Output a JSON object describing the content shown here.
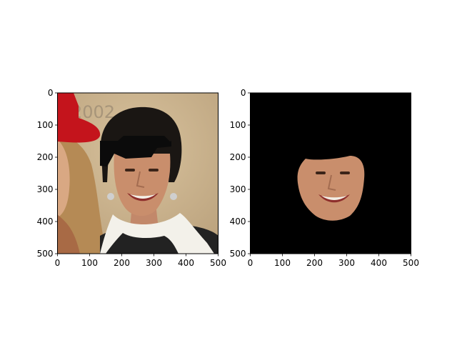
{
  "chart_data": [
    {
      "type": "image",
      "content": "cropped photo of a smiling woman with black hair and a white scarf; a black patch is pasted over her hair near the fringe",
      "xlim": [
        0,
        500
      ],
      "ylim": [
        500,
        0
      ],
      "xticks": [
        "0",
        "100",
        "200",
        "300",
        "400",
        "500"
      ],
      "yticks": [
        "0",
        "100",
        "200",
        "300",
        "400",
        "500"
      ],
      "visible_text_in_photo": "2002",
      "title": "",
      "xlabel": "",
      "ylabel": ""
    },
    {
      "type": "image",
      "content": "segmentation output: only the face region of the same woman shown on a black background",
      "xlim": [
        0,
        500
      ],
      "ylim": [
        500,
        0
      ],
      "xticks": [
        "0",
        "100",
        "200",
        "300",
        "400",
        "500"
      ],
      "yticks": [
        "0",
        "100",
        "200",
        "300",
        "400",
        "500"
      ],
      "title": "",
      "xlabel": "",
      "ylabel": ""
    }
  ],
  "colors": {
    "axes_edge": "#000000",
    "background": "#ffffff",
    "mask_background": "#000000",
    "photo_backdrop": "#c7ad87",
    "hair": "#1a1613",
    "skin": "#c98e6c",
    "scarf": "#f3f1ea",
    "red_hat": "#c4141c"
  }
}
